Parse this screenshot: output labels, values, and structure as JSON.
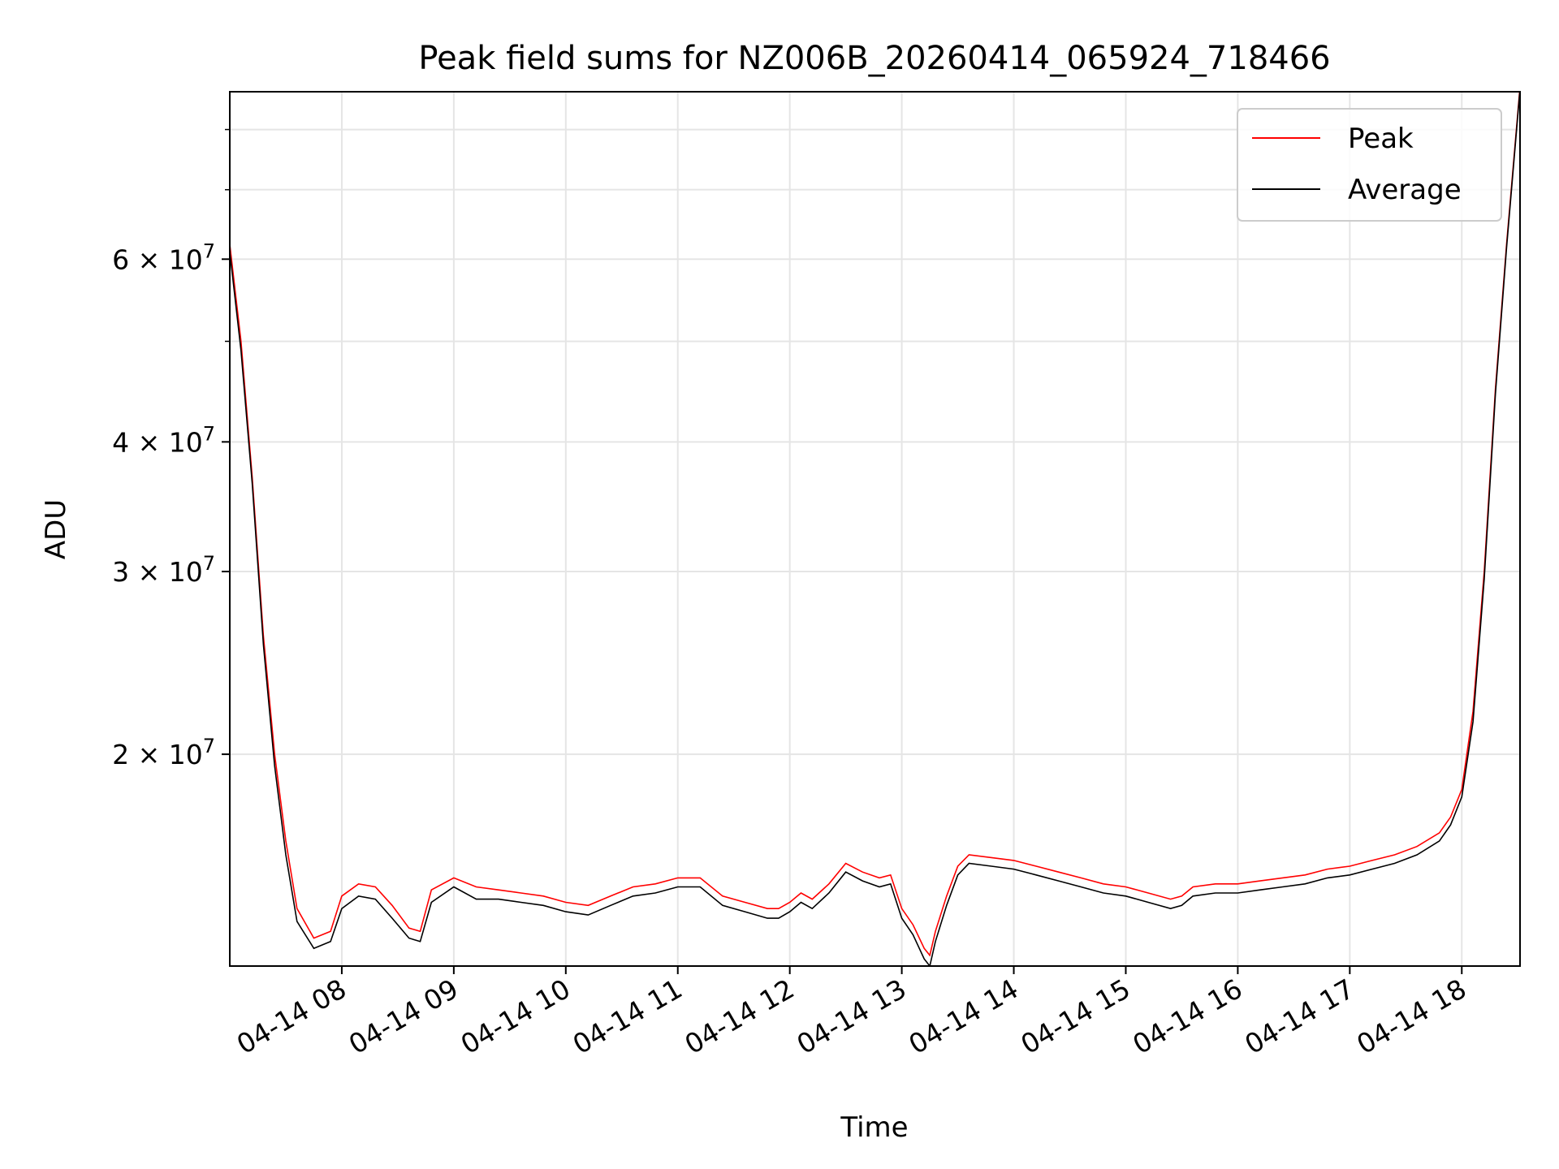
{
  "chart_data": {
    "type": "line",
    "title": "Peak field sums for NZ006B_20260414_065924_718466",
    "xlabel": "Time",
    "ylabel": "ADU",
    "yscale": "log",
    "xlim": [
      7.0,
      18.52
    ],
    "ylim": [
      12500000,
      87000000
    ],
    "grid": true,
    "legend_position": "top-right",
    "x_unit": "hours on 04-14",
    "x_ticks": [
      {
        "value": 8,
        "label": "04-14 08"
      },
      {
        "value": 9,
        "label": "04-14 09"
      },
      {
        "value": 10,
        "label": "04-14 10"
      },
      {
        "value": 11,
        "label": "04-14 11"
      },
      {
        "value": 12,
        "label": "04-14 12"
      },
      {
        "value": 13,
        "label": "04-14 13"
      },
      {
        "value": 14,
        "label": "04-14 14"
      },
      {
        "value": 15,
        "label": "04-14 15"
      },
      {
        "value": 16,
        "label": "04-14 16"
      },
      {
        "value": 17,
        "label": "04-14 17"
      },
      {
        "value": 18,
        "label": "04-14 18"
      }
    ],
    "y_ticks": [
      {
        "value": 20000000,
        "mantissa": "2",
        "base": "10",
        "exp": "7"
      },
      {
        "value": 30000000,
        "mantissa": "3",
        "base": "10",
        "exp": "7"
      },
      {
        "value": 40000000,
        "mantissa": "4",
        "base": "10",
        "exp": "7"
      },
      {
        "value": 60000000,
        "mantissa": "6",
        "base": "10",
        "exp": "7"
      }
    ],
    "y_minor_ticks": [
      50000000,
      70000000,
      80000000
    ],
    "series": [
      {
        "name": "Peak",
        "color": "#ff0000",
        "x": [
          7.0,
          7.1,
          7.2,
          7.3,
          7.4,
          7.5,
          7.6,
          7.75,
          7.9,
          8.0,
          8.15,
          8.3,
          8.45,
          8.6,
          8.7,
          8.8,
          9.0,
          9.2,
          9.4,
          9.6,
          9.8,
          10.0,
          10.2,
          10.4,
          10.6,
          10.8,
          11.0,
          11.2,
          11.4,
          11.6,
          11.8,
          11.9,
          12.0,
          12.1,
          12.2,
          12.35,
          12.5,
          12.65,
          12.8,
          12.9,
          13.0,
          13.1,
          13.2,
          13.25,
          13.3,
          13.4,
          13.5,
          13.6,
          13.8,
          14.0,
          14.2,
          14.4,
          14.6,
          14.8,
          15.0,
          15.2,
          15.4,
          15.5,
          15.6,
          15.8,
          16.0,
          16.2,
          16.4,
          16.6,
          16.8,
          17.0,
          17.2,
          17.4,
          17.6,
          17.8,
          17.9,
          18.0,
          18.1,
          18.2,
          18.3,
          18.4,
          18.52
        ],
        "y": [
          62000000,
          50000000,
          37000000,
          26000000,
          20000000,
          16500000,
          14200000,
          13300000,
          13500000,
          14600000,
          15000000,
          14900000,
          14300000,
          13600000,
          13500000,
          14800000,
          15200000,
          14900000,
          14800000,
          14700000,
          14600000,
          14400000,
          14300000,
          14600000,
          14900000,
          15000000,
          15200000,
          15200000,
          14600000,
          14400000,
          14200000,
          14200000,
          14400000,
          14700000,
          14500000,
          15000000,
          15700000,
          15400000,
          15200000,
          15300000,
          14200000,
          13700000,
          13000000,
          12800000,
          13500000,
          14600000,
          15600000,
          16000000,
          15900000,
          15800000,
          15600000,
          15400000,
          15200000,
          15000000,
          14900000,
          14700000,
          14500000,
          14600000,
          14900000,
          15000000,
          15000000,
          15100000,
          15200000,
          15300000,
          15500000,
          15600000,
          15800000,
          16000000,
          16300000,
          16800000,
          17400000,
          18500000,
          22000000,
          30000000,
          45000000,
          62000000,
          88000000
        ]
      },
      {
        "name": "Average",
        "color": "#000000",
        "x": [
          7.0,
          7.1,
          7.2,
          7.3,
          7.4,
          7.5,
          7.6,
          7.75,
          7.9,
          8.0,
          8.15,
          8.3,
          8.45,
          8.6,
          8.7,
          8.8,
          9.0,
          9.2,
          9.4,
          9.6,
          9.8,
          10.0,
          10.2,
          10.4,
          10.6,
          10.8,
          11.0,
          11.2,
          11.4,
          11.6,
          11.8,
          11.9,
          12.0,
          12.1,
          12.2,
          12.35,
          12.5,
          12.65,
          12.8,
          12.9,
          13.0,
          13.1,
          13.2,
          13.25,
          13.3,
          13.4,
          13.5,
          13.6,
          13.8,
          14.0,
          14.2,
          14.4,
          14.6,
          14.8,
          15.0,
          15.2,
          15.4,
          15.5,
          15.6,
          15.8,
          16.0,
          16.2,
          16.4,
          16.6,
          16.8,
          17.0,
          17.2,
          17.4,
          17.6,
          17.8,
          17.9,
          18.0,
          18.1,
          18.2,
          18.3,
          18.4,
          18.52
        ],
        "y": [
          61000000,
          49000000,
          36500000,
          25500000,
          19500000,
          16000000,
          13800000,
          13000000,
          13200000,
          14200000,
          14600000,
          14500000,
          13900000,
          13300000,
          13200000,
          14400000,
          14900000,
          14500000,
          14500000,
          14400000,
          14300000,
          14100000,
          14000000,
          14300000,
          14600000,
          14700000,
          14900000,
          14900000,
          14300000,
          14100000,
          13900000,
          13900000,
          14100000,
          14400000,
          14200000,
          14700000,
          15400000,
          15100000,
          14900000,
          15000000,
          13900000,
          13400000,
          12700000,
          12500000,
          13200000,
          14300000,
          15300000,
          15700000,
          15600000,
          15500000,
          15300000,
          15100000,
          14900000,
          14700000,
          14600000,
          14400000,
          14200000,
          14300000,
          14600000,
          14700000,
          14700000,
          14800000,
          14900000,
          15000000,
          15200000,
          15300000,
          15500000,
          15700000,
          16000000,
          16500000,
          17100000,
          18200000,
          21500000,
          29500000,
          44500000,
          61500000,
          87500000
        ]
      }
    ]
  }
}
